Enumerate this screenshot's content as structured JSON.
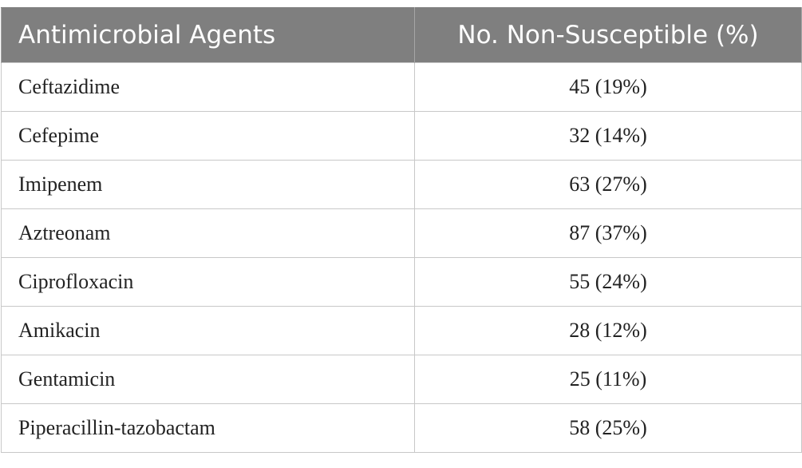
{
  "table": {
    "headers": [
      "Antimicrobial Agents",
      "No. Non-Susceptible (%)"
    ],
    "rows": [
      {
        "agent": "Ceftazidime",
        "value": "45 (19%)"
      },
      {
        "agent": "Cefepime",
        "value": "32 (14%)"
      },
      {
        "agent": "Imipenem",
        "value": "63 (27%)"
      },
      {
        "agent": "Aztreonam",
        "value": "87 (37%)"
      },
      {
        "agent": "Ciprofloxacin",
        "value": "55 (24%)"
      },
      {
        "agent": "Amikacin",
        "value": "28 (12%)"
      },
      {
        "agent": "Gentamicin",
        "value": "25 (11%)"
      },
      {
        "agent": "Piperacillin-tazobactam",
        "value": "58 (25%)"
      }
    ]
  },
  "colors": {
    "header_bg": "#7f7f7f",
    "header_text": "#ffffff",
    "grid": "#c8c8c8",
    "body_text": "#222222"
  }
}
